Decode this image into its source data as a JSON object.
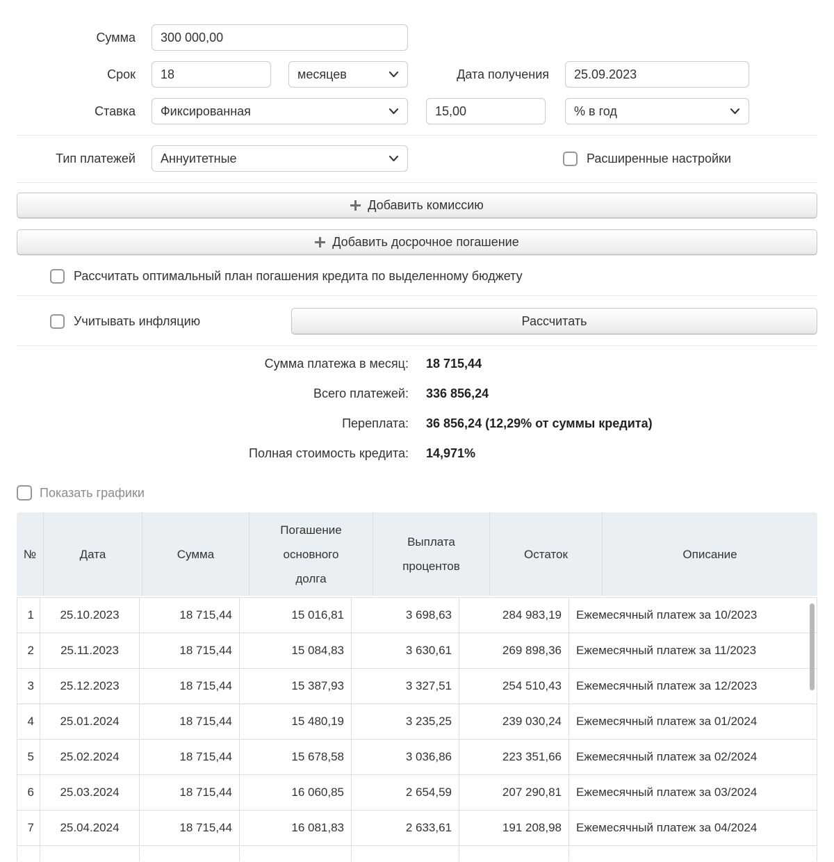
{
  "form": {
    "amount": {
      "label": "Сумма",
      "value": "300 000,00"
    },
    "term": {
      "label": "Срок",
      "value": "18",
      "unit": "месяцев"
    },
    "date": {
      "label": "Дата получения",
      "value": "25.09.2023"
    },
    "rate": {
      "label": "Ставка",
      "type": "Фиксированная",
      "value": "15,00",
      "unit": "% в год"
    },
    "payment_type": {
      "label": "Тип платежей",
      "value": "Аннуитетные"
    },
    "advanced_checkbox_label": "Расширенные настройки",
    "add_commission_button": "Добавить комиссию",
    "add_early_payment_button": "Добавить досрочное погашение",
    "optimal_plan_checkbox_label": "Рассчитать оптимальный план погашения кредита по выделенному бюджету",
    "inflation_checkbox_label": "Учитывать инфляцию",
    "calculate_button": "Рассчитать"
  },
  "results": {
    "rows": [
      {
        "label": "Сумма платежа в месяц:",
        "value": "18 715,44"
      },
      {
        "label": "Всего платежей:",
        "value": "336 856,24"
      },
      {
        "label": "Переплата:",
        "value": "36 856,24 (12,29% от суммы кредита)"
      },
      {
        "label": "Полная стоимость кредита:",
        "value": "14,971%"
      }
    ]
  },
  "show_charts_checkbox_label": "Показать графики",
  "table": {
    "headers": [
      "№",
      "Дата",
      "Сумма",
      "Погашение основного долга",
      "Выплата процентов",
      "Остаток",
      "Описание"
    ],
    "rows": [
      [
        "1",
        "25.10.2023",
        "18 715,44",
        "15 016,81",
        "3 698,63",
        "284 983,19",
        "Ежемесячный платеж за 10/2023"
      ],
      [
        "2",
        "25.11.2023",
        "18 715,44",
        "15 084,83",
        "3 630,61",
        "269 898,36",
        "Ежемесячный платеж за 11/2023"
      ],
      [
        "3",
        "25.12.2023",
        "18 715,44",
        "15 387,93",
        "3 327,51",
        "254 510,43",
        "Ежемесячный платеж за 12/2023"
      ],
      [
        "4",
        "25.01.2024",
        "18 715,44",
        "15 480,19",
        "3 235,25",
        "239 030,24",
        "Ежемесячный платеж за 01/2024"
      ],
      [
        "5",
        "25.02.2024",
        "18 715,44",
        "15 678,58",
        "3 036,86",
        "223 351,66",
        "Ежемесячный платеж за 02/2024"
      ],
      [
        "6",
        "25.03.2024",
        "18 715,44",
        "16 060,85",
        "2 654,59",
        "207 290,81",
        "Ежемесячный платеж за 03/2024"
      ],
      [
        "7",
        "25.04.2024",
        "18 715,44",
        "16 081,83",
        "2 633,61",
        "191 208,98",
        "Ежемесячный платеж за 04/2024"
      ]
    ]
  },
  "colors": {
    "table_header_bg": "#e9eff2",
    "table_border": "#dddddd",
    "divider": "#e8e8e8",
    "muted_label": "#8c8c8c"
  }
}
